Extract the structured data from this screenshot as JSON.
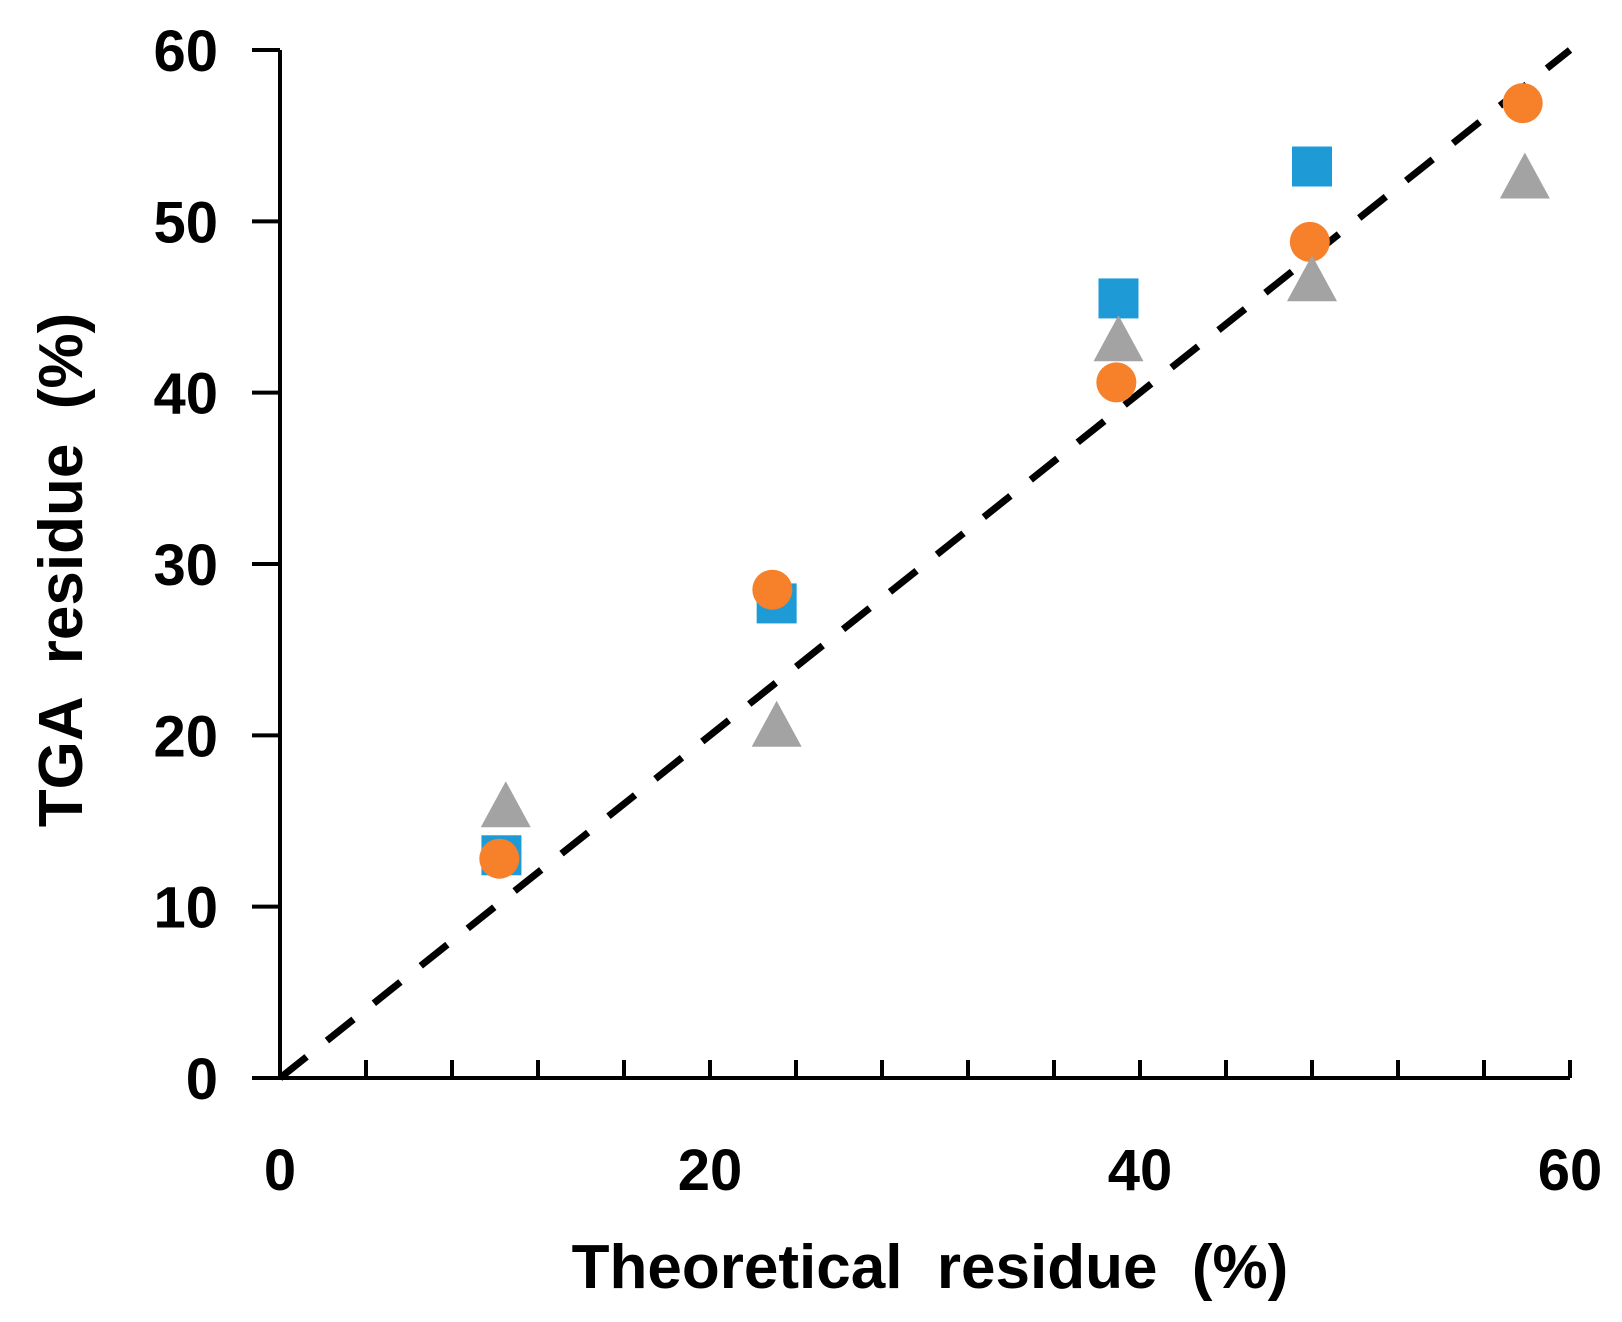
{
  "chart_data": {
    "type": "scatter",
    "title": "",
    "xlabel": "Theoretical  residue  (%)",
    "ylabel": "TGA  residue  (%)",
    "xlim": [
      0,
      60
    ],
    "ylim": [
      0,
      60
    ],
    "x_ticks": [
      0,
      20,
      40,
      60
    ],
    "x_tick_labels": [
      "0",
      "20",
      "40",
      "60"
    ],
    "x_minor_tick_step": 4,
    "y_ticks": [
      0,
      10,
      20,
      30,
      40,
      50,
      60
    ],
    "y_tick_labels": [
      "0",
      "10",
      "20",
      "30",
      "40",
      "50",
      "60"
    ],
    "grid": false,
    "legend": "none",
    "reference_line": {
      "label": "",
      "x": [
        0,
        60
      ],
      "y": [
        0,
        60
      ],
      "style": "dashed",
      "color": "#000000"
    },
    "series": [
      {
        "name": "series-square",
        "marker": "square",
        "color": "#1E9BD7",
        "points": [
          {
            "x": 10.3,
            "y": 13.0
          },
          {
            "x": 23.1,
            "y": 27.7
          },
          {
            "x": 39.0,
            "y": 45.5
          },
          {
            "x": 48.0,
            "y": 53.2
          }
        ]
      },
      {
        "name": "series-circle",
        "marker": "circle",
        "color": "#F7802B",
        "points": [
          {
            "x": 10.2,
            "y": 12.8
          },
          {
            "x": 22.9,
            "y": 28.5
          },
          {
            "x": 38.9,
            "y": 40.6
          },
          {
            "x": 47.9,
            "y": 48.8
          },
          {
            "x": 57.8,
            "y": 56.9
          }
        ]
      },
      {
        "name": "series-triangle",
        "marker": "triangle",
        "color": "#A3A3A3",
        "points": [
          {
            "x": 10.5,
            "y": 15.8
          },
          {
            "x": 23.1,
            "y": 20.5
          },
          {
            "x": 39.0,
            "y": 43.0
          },
          {
            "x": 48.0,
            "y": 46.5
          },
          {
            "x": 57.9,
            "y": 52.5
          }
        ]
      }
    ]
  }
}
